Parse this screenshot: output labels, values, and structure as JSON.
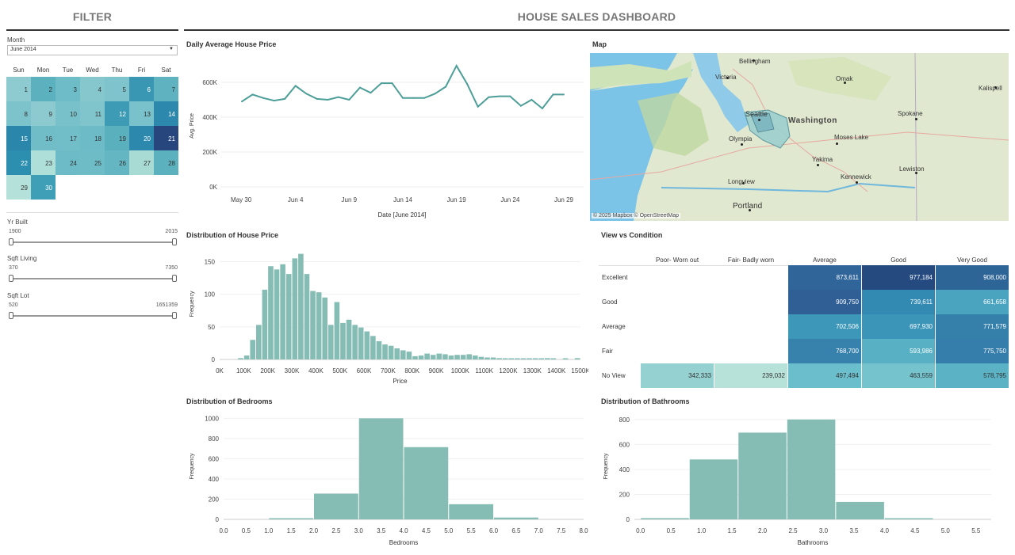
{
  "filter_title": "FILTER",
  "dashboard_title": "HOUSE SALES DASHBOARD",
  "month": {
    "label": "Month",
    "value": "June 2014"
  },
  "calendar": {
    "days_of_week": [
      "Sun",
      "Mon",
      "Tue",
      "Wed",
      "Thu",
      "Fri",
      "Sat"
    ],
    "start_weekday": 0,
    "days": [
      {
        "d": "1",
        "c": "#8ecbd1"
      },
      {
        "d": "2",
        "c": "#5cb1bf"
      },
      {
        "d": "3",
        "c": "#6dbcc7"
      },
      {
        "d": "4",
        "c": "#86c7ce"
      },
      {
        "d": "5",
        "c": "#7fc4cc"
      },
      {
        "d": "6",
        "c": "#3a97b3"
      },
      {
        "d": "7",
        "c": "#5fb2c0"
      },
      {
        "d": "8",
        "c": "#7dc3cb"
      },
      {
        "d": "9",
        "c": "#8ccad0"
      },
      {
        "d": "10",
        "c": "#79c1ca"
      },
      {
        "d": "11",
        "c": "#80c5cc"
      },
      {
        "d": "12",
        "c": "#3d9bb5"
      },
      {
        "d": "13",
        "c": "#7ac2cb"
      },
      {
        "d": "14",
        "c": "#2c88ad"
      },
      {
        "d": "15",
        "c": "#2a86ab"
      },
      {
        "d": "16",
        "c": "#70bdc7"
      },
      {
        "d": "17",
        "c": "#72bec8"
      },
      {
        "d": "18",
        "c": "#6cbbc6"
      },
      {
        "d": "19",
        "c": "#5ab0bd"
      },
      {
        "d": "20",
        "c": "#2c89ad"
      },
      {
        "d": "21",
        "c": "#26467d"
      },
      {
        "d": "22",
        "c": "#2d8fb0"
      },
      {
        "d": "23",
        "c": "#aedfd8"
      },
      {
        "d": "24",
        "c": "#6cbbc6"
      },
      {
        "d": "25",
        "c": "#6dbcc6"
      },
      {
        "d": "26",
        "c": "#64b6c2"
      },
      {
        "d": "27",
        "c": "#a8dbd4"
      },
      {
        "d": "28",
        "c": "#5cb1be"
      },
      {
        "d": "29",
        "c": "#b4e1d9"
      },
      {
        "d": "30",
        "c": "#3e9fb7"
      }
    ]
  },
  "sliders": [
    {
      "label": "Yr Built",
      "min": "1900",
      "max": "2015"
    },
    {
      "label": "Sqft Living",
      "min": "370",
      "max": "7350"
    },
    {
      "label": "Sqft Lot",
      "min": "520",
      "max": "1651359"
    }
  ],
  "line_chart": {
    "title": "Daily Average House Price",
    "ylabel": "Avg. Price",
    "xlabel": "Date [June 2014]",
    "yticks": [
      "600K",
      "400K",
      "200K",
      "0K"
    ],
    "xticks": [
      "May 30",
      "Jun 4",
      "Jun 9",
      "Jun 14",
      "Jun 19",
      "Jun 24",
      "Jun 29"
    ],
    "color": "#4d9e98"
  },
  "map": {
    "title": "Map",
    "attribution": "© 2025 Mapbox  © OpenStreetMap",
    "region_label": "Washington",
    "places": [
      "Bellingham",
      "Victoria",
      "Omak",
      "Kalispell",
      "Seattle",
      "Spokane",
      "Olympia",
      "Moses Lake",
      "Yakima",
      "Kennewick",
      "Lewiston",
      "Longview",
      "Portland"
    ]
  },
  "price_hist": {
    "title": "Distribution of House Price",
    "ylabel": "Frequency",
    "xlabel": "Price",
    "yticks": [
      "150",
      "100",
      "50",
      "0"
    ],
    "xticks": [
      "0K",
      "100K",
      "200K",
      "300K",
      "400K",
      "500K",
      "600K",
      "700K",
      "800K",
      "900K",
      "1000K",
      "1100K",
      "1200K",
      "1300K",
      "1400K",
      "1500K"
    ]
  },
  "heatmap": {
    "title": "View vs Condition",
    "columns": [
      "Poor- Worn out",
      "Fair- Badly worn",
      "Average",
      "Good",
      "Very Good"
    ],
    "rows": [
      {
        "label": "Excellent",
        "cells": [
          "",
          "",
          "873,611",
          "977,184",
          "908,000"
        ],
        "colors": [
          "",
          "",
          "#30659a",
          "#244a80",
          "#2e6597"
        ]
      },
      {
        "label": "Good",
        "cells": [
          "",
          "",
          "909,750",
          "739,611",
          "661,658"
        ],
        "colors": [
          "",
          "",
          "#2f5f94",
          "#3289b1",
          "#4aa4bf"
        ]
      },
      {
        "label": "Average",
        "cells": [
          "",
          "",
          "702,506",
          "697,930",
          "771,579"
        ],
        "colors": [
          "",
          "",
          "#3c97b9",
          "#3b95b8",
          "#3580ab"
        ]
      },
      {
        "label": "Fair",
        "cells": [
          "",
          "",
          "768,700",
          "593,986",
          "775,750"
        ],
        "colors": [
          "",
          "",
          "#3682ad",
          "#58b0c4",
          "#357eab"
        ]
      },
      {
        "label": "No View",
        "cells": [
          "342,333",
          "239,032",
          "497,494",
          "463,559",
          "578,795"
        ],
        "colors": [
          "#95d1d1",
          "#b6e2da",
          "#6bbecb",
          "#74c3cd",
          "#5ab2c4"
        ]
      }
    ]
  },
  "bed_hist": {
    "title": "Distribution of Bedrooms",
    "ylabel": "Frequency",
    "xlabel": "Bedrooms",
    "yticks": [
      "1000",
      "800",
      "600",
      "400",
      "200",
      "0"
    ],
    "xticks": [
      "0.0",
      "0.5",
      "1.0",
      "1.5",
      "2.0",
      "2.5",
      "3.0",
      "3.5",
      "4.0",
      "4.5",
      "5.0",
      "5.5",
      "6.0",
      "6.5",
      "7.0",
      "7.5",
      "8.0"
    ]
  },
  "bath_hist": {
    "title": "Distribution of Bathrooms",
    "ylabel": "Frequency",
    "xlabel": "Bathrooms",
    "yticks": [
      "800",
      "600",
      "400",
      "200",
      "0"
    ],
    "xticks": [
      "0.0",
      "0.5",
      "1.0",
      "1.5",
      "2.0",
      "2.5",
      "3.0",
      "3.5",
      "4.0",
      "4.5",
      "5.0",
      "5.5"
    ]
  },
  "chart_data": [
    {
      "type": "line",
      "title": "Daily Average House Price",
      "xlabel": "Date [June 2014]",
      "ylabel": "Avg. Price",
      "x": [
        "2014-05-30",
        "2014-05-31",
        "2014-06-01",
        "2014-06-02",
        "2014-06-03",
        "2014-06-04",
        "2014-06-05",
        "2014-06-06",
        "2014-06-07",
        "2014-06-08",
        "2014-06-09",
        "2014-06-10",
        "2014-06-11",
        "2014-06-12",
        "2014-06-13",
        "2014-06-14",
        "2014-06-15",
        "2014-06-16",
        "2014-06-17",
        "2014-06-18",
        "2014-06-19",
        "2014-06-20",
        "2014-06-21",
        "2014-06-22",
        "2014-06-23",
        "2014-06-24",
        "2014-06-25",
        "2014-06-26",
        "2014-06-27",
        "2014-06-28",
        "2014-06-29"
      ],
      "y": [
        490000,
        530000,
        510000,
        495000,
        505000,
        580000,
        535000,
        505000,
        500000,
        515000,
        500000,
        570000,
        540000,
        595000,
        595000,
        510000,
        510000,
        510000,
        535000,
        575000,
        695000,
        590000,
        460000,
        515000,
        520000,
        520000,
        465000,
        500000,
        450000,
        530000,
        530000
      ],
      "ylim": [
        0,
        700000
      ]
    },
    {
      "type": "bar",
      "title": "Distribution of House Price",
      "xlabel": "Price",
      "ylabel": "Frequency",
      "bin_width": 25000,
      "bin_starts": [
        75000,
        100000,
        125000,
        150000,
        175000,
        200000,
        225000,
        250000,
        275000,
        300000,
        325000,
        350000,
        375000,
        400000,
        425000,
        450000,
        475000,
        500000,
        525000,
        550000,
        575000,
        600000,
        625000,
        650000,
        675000,
        700000,
        725000,
        750000,
        775000,
        800000,
        825000,
        850000,
        875000,
        900000,
        925000,
        950000,
        975000,
        1000000,
        1025000,
        1050000,
        1075000,
        1100000,
        1125000,
        1150000,
        1175000,
        1200000,
        1225000,
        1250000,
        1275000,
        1300000,
        1325000,
        1350000,
        1375000,
        1400000,
        1425000,
        1450000,
        1475000
      ],
      "values": [
        2,
        6,
        30,
        53,
        107,
        143,
        138,
        146,
        131,
        155,
        162,
        131,
        105,
        103,
        95,
        53,
        88,
        56,
        61,
        53,
        49,
        43,
        36,
        28,
        23,
        21,
        17,
        14,
        12,
        5,
        6,
        9,
        7,
        9,
        8,
        6,
        7,
        7,
        8,
        6,
        4,
        3,
        3,
        2,
        1,
        1,
        1,
        1,
        1,
        1,
        1,
        2,
        1,
        0,
        1,
        0,
        2
      ],
      "ylim": [
        0,
        170
      ]
    },
    {
      "type": "heatmap",
      "title": "View vs Condition",
      "x": [
        "Poor- Worn out",
        "Fair- Badly worn",
        "Average",
        "Good",
        "Very Good"
      ],
      "y": [
        "Excellent",
        "Good",
        "Average",
        "Fair",
        "No View"
      ],
      "values": [
        [
          null,
          null,
          873611,
          977184,
          908000
        ],
        [
          null,
          null,
          909750,
          739611,
          661658
        ],
        [
          null,
          null,
          702506,
          697930,
          771579
        ],
        [
          null,
          null,
          768700,
          593986,
          775750
        ],
        [
          342333,
          239032,
          497494,
          463559,
          578795
        ]
      ]
    },
    {
      "type": "bar",
      "title": "Distribution of Bedrooms",
      "xlabel": "Bedrooms",
      "ylabel": "Frequency",
      "bin_starts": [
        1,
        2,
        3,
        4,
        5,
        6
      ],
      "bin_width": 1,
      "values": [
        10,
        255,
        1000,
        715,
        150,
        18
      ],
      "ylim": [
        0,
        1050
      ]
    },
    {
      "type": "bar",
      "title": "Distribution of Bathrooms",
      "xlabel": "Bathrooms",
      "ylabel": "Frequency",
      "bin_starts": [
        0,
        0.8,
        1.6,
        2.4,
        3.2,
        4.0
      ],
      "bin_width": 0.8,
      "values": [
        10,
        480,
        695,
        800,
        140,
        8
      ],
      "ylim": [
        0,
        850
      ]
    }
  ]
}
